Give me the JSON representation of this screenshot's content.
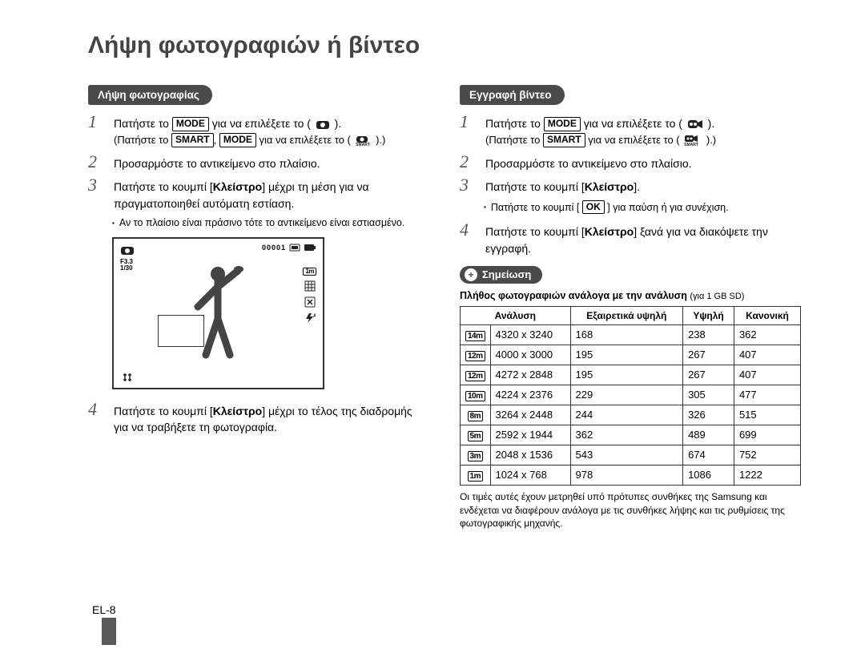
{
  "title": "Λήψη φωτογραφιών ή βίντεο",
  "photo": {
    "heading": "Λήψη φωτογραφίας",
    "step1a": "Πατήστε το ",
    "step1b": " για να επιλέξετε το ( ",
    "step1c": " ).",
    "step1d": "(Πατήστε το ",
    "step1e": ", ",
    "step1f": " για να επιλέξετε το ( ",
    "step1g": " ).)",
    "mode": "MODE",
    "smart": "SMART",
    "step2": "Προσαρμόστε το αντικείμενο στο πλαίσιο.",
    "step3a": "Πατήστε το κουμπί [",
    "step3b": "] μέχρι τη μέση για να πραγματοποιηθεί αυτόματη εστίαση.",
    "shutter": "Κλείστρο",
    "bullet1": "Αν το πλαίσιο είναι πράσινο τότε το αντικείμενο είναι εστιασμένο.",
    "step4a": "Πατήστε το κουμπί [",
    "step4b": "] μέχρι το τέλος της διαδρομής για να τραβήξετε τη φωτογραφία.",
    "lcd": {
      "shots": "00001",
      "fnum": "F3.3",
      "speed": "1/30"
    }
  },
  "video": {
    "heading": "Εγγραφή βίντεο",
    "step1a": "Πατήστε το ",
    "step1b": " για να επιλέξετε το ( ",
    "step1c": " ).",
    "step1d": "(Πατήστε το ",
    "step1e": " για να επιλέξετε το ( ",
    "step1f": " ).)",
    "mode": "MODE",
    "smart": "SMART",
    "step2": "Προσαρμόστε το αντικείμενο στο πλαίσιο.",
    "step3a": "Πατήστε το κουμπί [",
    "step3b": "].",
    "shutter": "Κλείστρο",
    "ok": "OK",
    "bullet1a": "Πατήστε το κουμπί [ ",
    "bullet1b": " ] για παύση ή για συνέχιση.",
    "step4a": "Πατήστε το κουμπί [",
    "step4b": "] ξανά για να διακόψετε την εγγραφή."
  },
  "note": {
    "label": "Σημείωση",
    "caption_a": "Πλήθος φωτογραφιών ανάλογα με την ανάλυση ",
    "caption_b": "(για 1 GB SD)",
    "head": {
      "c1": "Ανάλυση",
      "c2": "Εξαιρετικά υψηλή",
      "c3": "Υψηλή",
      "c4": "Κανονική"
    },
    "rows": [
      {
        "badge": "14m",
        "res": "4320 x 3240",
        "a": "168",
        "b": "238",
        "c": "362"
      },
      {
        "badge": "12m",
        "res": "4000 x 3000",
        "a": "195",
        "b": "267",
        "c": "407"
      },
      {
        "badge": "12m",
        "res": "4272 x 2848",
        "a": "195",
        "b": "267",
        "c": "407"
      },
      {
        "badge": "10m",
        "res": "4224 x 2376",
        "a": "229",
        "b": "305",
        "c": "477"
      },
      {
        "badge": "8m",
        "res": "3264 x 2448",
        "a": "244",
        "b": "326",
        "c": "515"
      },
      {
        "badge": "5m",
        "res": "2592 x 1944",
        "a": "362",
        "b": "489",
        "c": "699"
      },
      {
        "badge": "3m",
        "res": "2048 x 1536",
        "a": "543",
        "b": "674",
        "c": "752"
      },
      {
        "badge": "1m",
        "res": "1024 x 768",
        "a": "978",
        "b": "1086",
        "c": "1222"
      }
    ],
    "foot": "Οι τιμές αυτές έχουν μετρηθεί υπό πρότυπες συνθήκες της Samsung και ενδέχεται να διαφέρουν ανάλογα με τις συνθήκες λήψης και τις ρυθμίσεις της φωτογραφικής μηχανής."
  },
  "page": "EL-8"
}
